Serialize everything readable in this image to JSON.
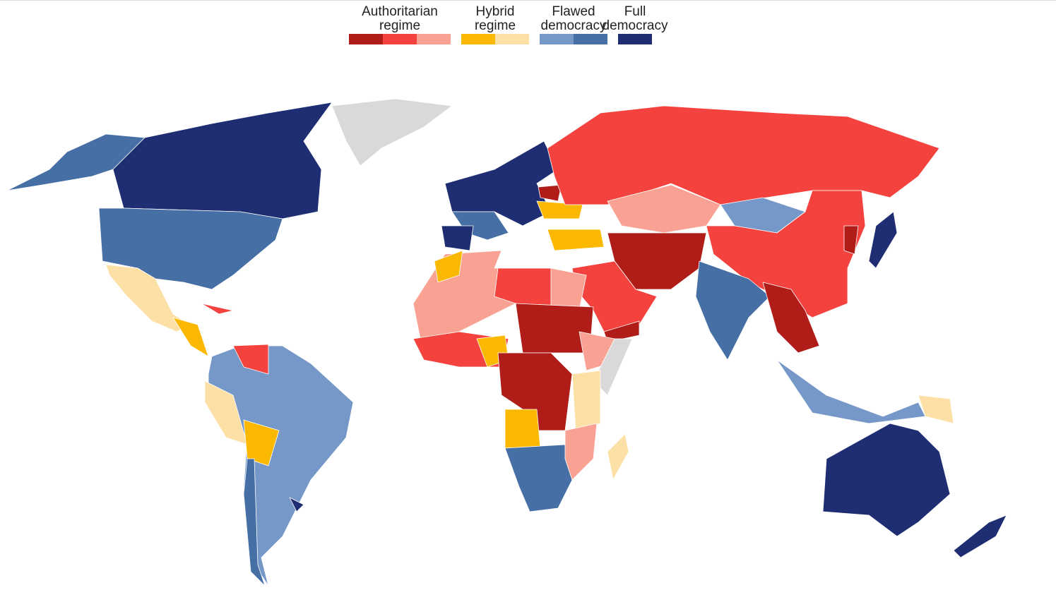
{
  "legend": {
    "items": [
      {
        "label": "Authoritarian regime",
        "colors": [
          "#b01c18",
          "#f4433e",
          "#f9a293"
        ]
      },
      {
        "label": "Hybrid regime",
        "colors": [
          "#fbb800",
          "#fde0a6"
        ]
      },
      {
        "label": "Flawed democracy",
        "colors": [
          "#7598c8",
          "#466fa6"
        ]
      },
      {
        "label": "Full democracy",
        "colors": [
          "#1f2e73"
        ]
      }
    ]
  }
}
